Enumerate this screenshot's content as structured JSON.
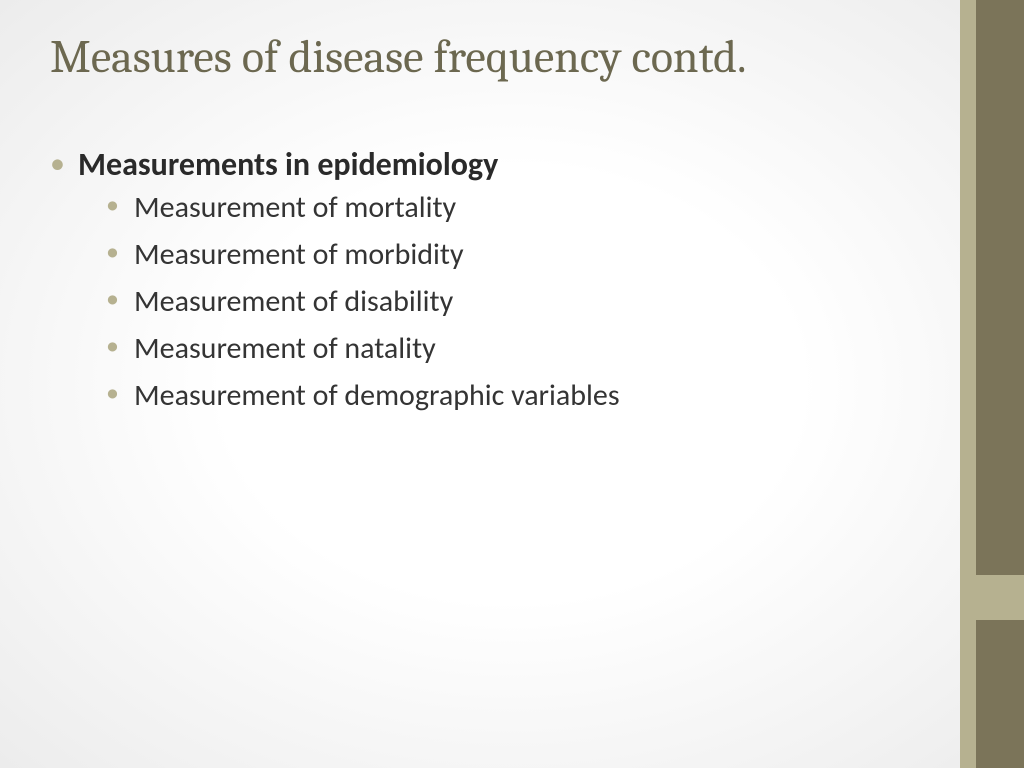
{
  "theme": {
    "title_color": "#6c6850",
    "bullet_color": "#b6b190",
    "sidebar_outer_color": "#7b7459",
    "sidebar_inner_color": "#b6b190",
    "accent_block_color": "#b6b190",
    "background_center": "#ffffff",
    "background_edge": "#ececec",
    "body_text_color": "#343434",
    "title_font": "Cambria",
    "body_font": "Calibri",
    "title_fontsize": 46,
    "level1_fontsize": 32,
    "level2_fontsize": 30
  },
  "slide": {
    "title": "Measures of disease frequency contd.",
    "heading": "Measurements in epidemiology",
    "bullets": [
      "Measurement of mortality",
      "Measurement of morbidity",
      "Measurement of disability",
      "Measurement of natality",
      "Measurement of demographic variables"
    ]
  }
}
